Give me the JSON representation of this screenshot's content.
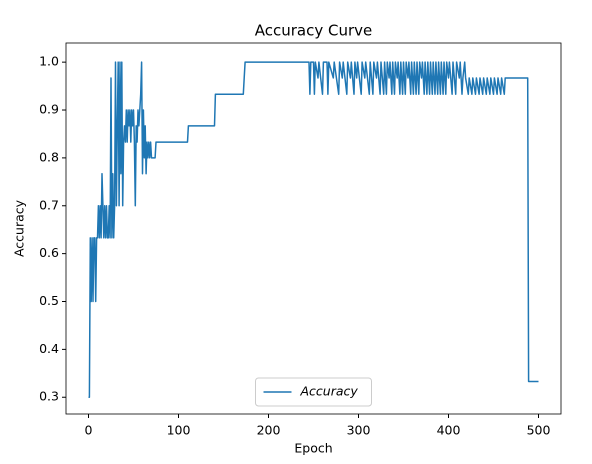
{
  "chart_data": {
    "type": "line",
    "title": "Accuracy Curve",
    "x_label": "Epoch",
    "y_label": "Accuracy",
    "xlim": [
      -25,
      525
    ],
    "ylim": [
      0.265,
      1.04
    ],
    "xticks": [
      0,
      100,
      200,
      300,
      400,
      500
    ],
    "yticks": [
      0.3,
      0.4,
      0.5,
      0.6,
      0.7,
      0.8,
      0.9,
      {
        "value": 1,
        "label": "1.0"
      }
    ],
    "legend": "lower center",
    "series": [
      {
        "name": "Accuracy",
        "color": "#1f77b4",
        "x": [
          0,
          1,
          2,
          3,
          4,
          5,
          6,
          7,
          8,
          9,
          10,
          11,
          12,
          13,
          14,
          15,
          16,
          17,
          18,
          19,
          20,
          21,
          22,
          23,
          24,
          25,
          26,
          27,
          28,
          29,
          30,
          31,
          32,
          33,
          34,
          35,
          36,
          37,
          38,
          39,
          40,
          41,
          42,
          43,
          44,
          45,
          46,
          47,
          48,
          49,
          50,
          51,
          52,
          53,
          54,
          55,
          56,
          57,
          58,
          59,
          60,
          61,
          62,
          63,
          64,
          65,
          66,
          67,
          68,
          69,
          70,
          74,
          75,
          110,
          111,
          140,
          141,
          172,
          173,
          174,
          245,
          246,
          247,
          250,
          251,
          252,
          255,
          256,
          260,
          261,
          265,
          266,
          267,
          272,
          273,
          278,
          279,
          282,
          283,
          287,
          288,
          291,
          292,
          295,
          296,
          298,
          299,
          303,
          304,
          307,
          308,
          312,
          313,
          316,
          317,
          320,
          321,
          324,
          325,
          328,
          329,
          331,
          332,
          334,
          335,
          337,
          338,
          340,
          341,
          343,
          344,
          346,
          347,
          349,
          350,
          352,
          353,
          355,
          356,
          358,
          359,
          361,
          362,
          364,
          365,
          367,
          368,
          370,
          371,
          373,
          374,
          376,
          377,
          379,
          380,
          382,
          383,
          385,
          386,
          388,
          389,
          391,
          392,
          394,
          395,
          397,
          398,
          400,
          401,
          404,
          405,
          408,
          409,
          412,
          413,
          415,
          416,
          418,
          419,
          422,
          423,
          426,
          427,
          430,
          431,
          434,
          435,
          438,
          439,
          442,
          443,
          446,
          447,
          450,
          451,
          454,
          455,
          458,
          459,
          462,
          463,
          488,
          489,
          500
        ],
        "values": [
          0.3,
          0.3,
          0.633,
          0.5,
          0.633,
          0.5,
          0.633,
          0.633,
          0.5,
          0.633,
          0.633,
          0.7,
          0.633,
          0.7,
          0.633,
          0.767,
          0.7,
          0.633,
          0.7,
          0.633,
          0.7,
          0.633,
          0.633,
          0.7,
          0.633,
          0.967,
          0.633,
          0.767,
          0.633,
          0.7,
          1.0,
          0.7,
          0.867,
          1.0,
          0.7,
          1.0,
          0.767,
          1.0,
          0.7,
          0.833,
          0.867,
          0.833,
          0.9,
          0.833,
          0.9,
          0.867,
          0.9,
          0.833,
          0.9,
          0.867,
          0.9,
          0.833,
          0.7,
          0.867,
          0.833,
          0.9,
          0.867,
          0.9,
          0.933,
          1.0,
          0.767,
          0.9,
          0.8,
          0.867,
          0.767,
          0.833,
          0.8,
          0.833,
          0.8,
          0.833,
          0.8,
          0.8,
          0.833,
          0.833,
          0.867,
          0.867,
          0.933,
          0.933,
          0.967,
          1.0,
          1.0,
          0.933,
          1.0,
          1.0,
          0.933,
          1.0,
          0.967,
          1.0,
          0.933,
          1.0,
          1.0,
          0.933,
          1.0,
          0.967,
          1.0,
          0.933,
          1.0,
          0.967,
          1.0,
          0.933,
          1.0,
          0.967,
          1.0,
          0.933,
          1.0,
          0.967,
          1.0,
          0.933,
          1.0,
          0.967,
          1.0,
          0.933,
          1.0,
          0.933,
          1.0,
          0.967,
          1.0,
          0.933,
          1.0,
          0.933,
          1.0,
          0.933,
          1.0,
          0.967,
          1.0,
          0.933,
          1.0,
          0.933,
          1.0,
          0.967,
          1.0,
          0.933,
          1.0,
          0.933,
          1.0,
          0.933,
          1.0,
          0.967,
          1.0,
          0.933,
          1.0,
          0.933,
          1.0,
          0.933,
          1.0,
          0.933,
          1.0,
          0.967,
          1.0,
          0.933,
          1.0,
          0.933,
          1.0,
          0.933,
          1.0,
          0.933,
          1.0,
          0.933,
          1.0,
          0.933,
          1.0,
          0.933,
          1.0,
          0.933,
          1.0,
          0.933,
          1.0,
          0.967,
          1.0,
          0.933,
          1.0,
          0.933,
          1.0,
          0.967,
          1.0,
          0.933,
          0.967,
          1.0,
          0.967,
          0.933,
          0.967,
          0.933,
          0.967,
          0.933,
          0.967,
          0.933,
          0.967,
          0.933,
          0.967,
          0.933,
          0.967,
          0.933,
          0.967,
          0.933,
          0.967,
          0.933,
          0.967,
          0.933,
          0.967,
          0.933,
          0.967,
          0.967,
          0.333,
          0.333
        ]
      }
    ]
  }
}
